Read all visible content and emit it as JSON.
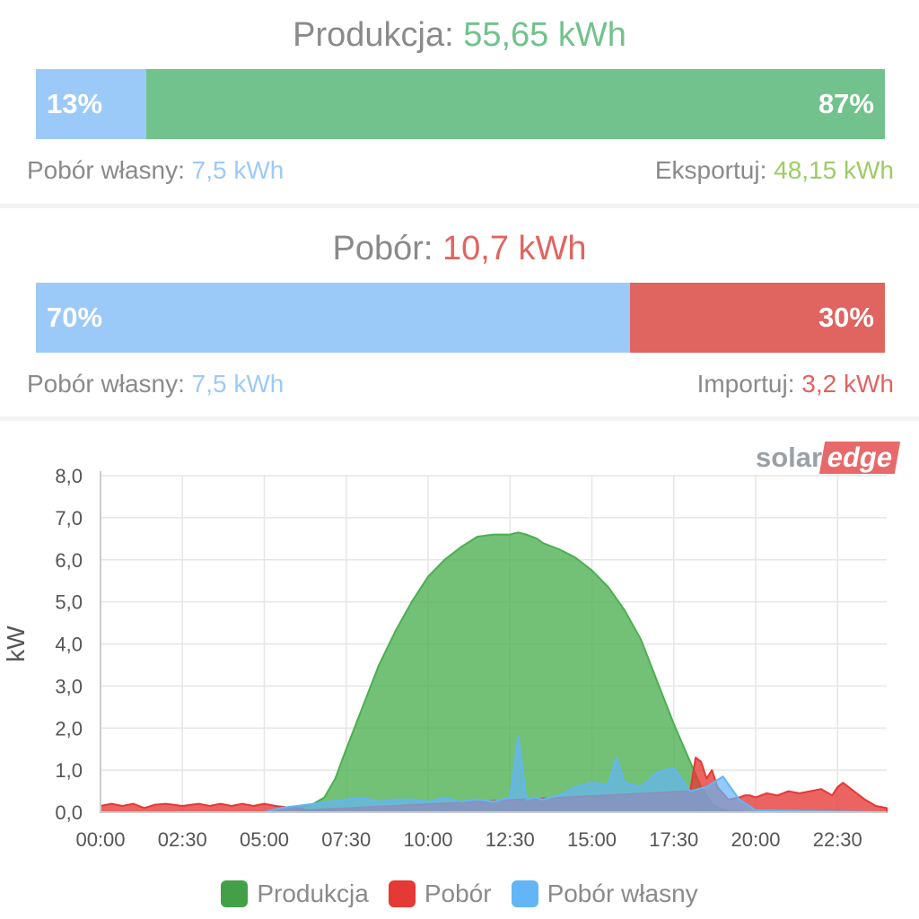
{
  "production": {
    "title_label": "Produkcja:",
    "title_value": "55,65 kWh",
    "bar": [
      {
        "name": "Pobór własny",
        "percent": 13,
        "label": "13%",
        "color": "#9ccaf8"
      },
      {
        "name": "Eksportuj",
        "percent": 87,
        "label": "87%",
        "color": "#71c28c"
      }
    ],
    "left_label": "Pobór własny:",
    "left_value": "7,5 kWh",
    "right_label": "Eksportuj:",
    "right_value": "48,15 kWh"
  },
  "consumption": {
    "title_label": "Pobór:",
    "title_value": "10,7 kWh",
    "bar": [
      {
        "name": "Pobór własny",
        "percent": 70,
        "label": "70%",
        "color": "#9ccaf8"
      },
      {
        "name": "Importuj",
        "percent": 30,
        "label": "30%",
        "color": "#e06460"
      }
    ],
    "left_label": "Pobór własny:",
    "left_value": "7,5 kWh",
    "right_label": "Importuj:",
    "right_value": "3,2 kWh"
  },
  "colors": {
    "production": "#71c28c",
    "consumption": "#e06460",
    "self": "#9ccaf8",
    "export_text": "#9ccc65"
  },
  "brand": {
    "part1": "solar",
    "part2": "edge"
  },
  "chart_data": {
    "type": "area",
    "ylabel": "kW",
    "xlabel": "",
    "ylim": [
      0,
      8.0
    ],
    "xlim": [
      0,
      1440
    ],
    "yticks": [
      "0,0",
      "1,0",
      "2,0",
      "3,0",
      "4,0",
      "5,0",
      "6,0",
      "7,0",
      "8,0"
    ],
    "xticks": [
      "00:00",
      "02:30",
      "05:00",
      "07:30",
      "10:00",
      "12:30",
      "15:00",
      "17:30",
      "20:00",
      "22:30"
    ],
    "grid": true,
    "legend_position": "bottom",
    "series": [
      {
        "name": "Produkcja",
        "color": "#4caf50",
        "x": [
          0,
          300,
          330,
          360,
          390,
          410,
          430,
          450,
          480,
          510,
          540,
          570,
          600,
          630,
          660,
          690,
          720,
          750,
          765,
          780,
          800,
          810,
          840,
          870,
          900,
          930,
          960,
          990,
          1020,
          1050,
          1080,
          1100,
          1120,
          1140,
          1160,
          1180,
          1200,
          1440
        ],
        "y": [
          0,
          0,
          0.05,
          0.1,
          0.2,
          0.35,
          0.8,
          1.5,
          2.5,
          3.5,
          4.3,
          5.0,
          5.6,
          6.0,
          6.3,
          6.55,
          6.6,
          6.6,
          6.65,
          6.6,
          6.5,
          6.4,
          6.25,
          6.05,
          5.75,
          5.35,
          4.8,
          4.1,
          3.1,
          2.1,
          1.2,
          0.6,
          0.2,
          0.05,
          0.02,
          0,
          0,
          0
        ]
      },
      {
        "name": "Pobór",
        "color": "#e53935",
        "x": [
          0,
          20,
          40,
          60,
          80,
          100,
          120,
          150,
          180,
          200,
          220,
          240,
          260,
          280,
          300,
          320,
          340,
          360,
          380,
          1080,
          1090,
          1100,
          1110,
          1120,
          1130,
          1150,
          1170,
          1180,
          1190,
          1200,
          1220,
          1240,
          1260,
          1280,
          1300,
          1320,
          1340,
          1350,
          1360,
          1380,
          1400,
          1420,
          1440
        ],
        "y": [
          0.15,
          0.2,
          0.15,
          0.2,
          0.1,
          0.18,
          0.2,
          0.15,
          0.2,
          0.15,
          0.2,
          0.15,
          0.2,
          0.15,
          0.2,
          0.15,
          0.12,
          0.1,
          0.05,
          0.5,
          1.3,
          1.2,
          0.8,
          1.0,
          0.6,
          0.3,
          0.35,
          0.4,
          0.4,
          0.35,
          0.45,
          0.4,
          0.5,
          0.45,
          0.5,
          0.55,
          0.4,
          0.6,
          0.7,
          0.5,
          0.3,
          0.15,
          0.1
        ]
      },
      {
        "name": "Pobór własny",
        "color": "#64b5f6",
        "x": [
          0,
          300,
          330,
          360,
          390,
          420,
          450,
          480,
          510,
          540,
          570,
          600,
          630,
          660,
          690,
          720,
          750,
          765,
          780,
          795,
          810,
          840,
          870,
          900,
          930,
          945,
          960,
          990,
          1020,
          1050,
          1080,
          1110,
          1140,
          1170,
          1200,
          1440
        ],
        "y": [
          0,
          0,
          0.1,
          0.15,
          0.2,
          0.25,
          0.3,
          0.35,
          0.25,
          0.3,
          0.3,
          0.25,
          0.35,
          0.25,
          0.3,
          0.25,
          0.35,
          1.8,
          0.3,
          0.35,
          0.3,
          0.4,
          0.6,
          0.7,
          0.65,
          1.3,
          0.7,
          0.6,
          0.95,
          1.05,
          0.5,
          0.6,
          0.85,
          0.3,
          0.05,
          0
        ]
      }
    ]
  }
}
